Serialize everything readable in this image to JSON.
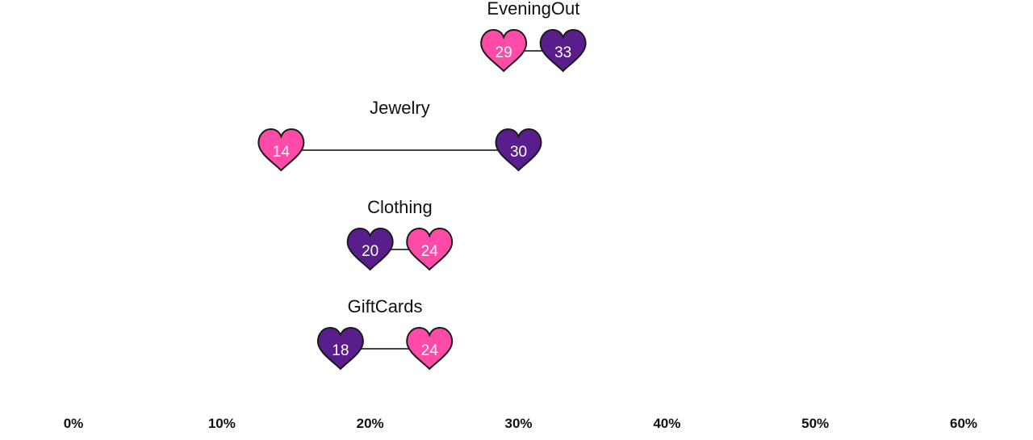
{
  "chart_data": {
    "type": "dumbbell",
    "categories": [
      "EveningOut",
      "Jewelry",
      "Clothing",
      "GiftCards"
    ],
    "series": [
      {
        "values": [
          29,
          14,
          24,
          24
        ],
        "color": "#ff4aa8"
      },
      {
        "values": [
          33,
          30,
          20,
          18
        ],
        "color": "#5a1e8c"
      }
    ],
    "x_ticks": [
      "0%",
      "10%",
      "20%",
      "30%",
      "40%",
      "50%",
      "60%"
    ],
    "xlim": [
      0,
      60
    ],
    "marker": "heart-icon",
    "grid": false,
    "legend": "none"
  }
}
